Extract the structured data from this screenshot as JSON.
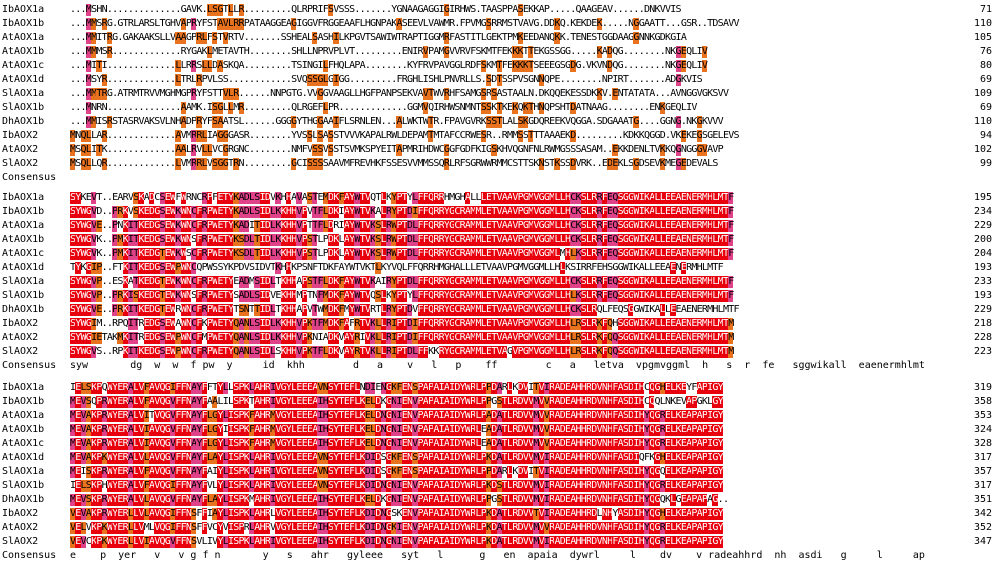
{
  "colors": {
    "identical": "#e8000c",
    "high_similarity": "#e0428a",
    "low_similarity": "#e8721e",
    "background": "#ffffff"
  },
  "blocks": [
    {
      "rows": [
        {
          "name": "IbAOX1a",
          "seq": "...MSHN..............GAVK.LSGTLLR.........QLRPRIFSVSSS.......YGNAAGAGGIGIRHWS.TAASPPASEKKAP.....QAAGEAV......DNKVVIS",
          "end": "71"
        },
        {
          "name": "IbAOX1b",
          "seq": "...MMSRG.GTRLARSLTGHVAPRYFSTAVLRRPATAAGGEAGIGGVFRGGEAAFLHGNPAKASEEVLVAWMR.FPVMGSRRMSTVAVG.DDKQ.KEKDEK.....NGGAATT...GSR..TDSAVV",
          "end": "110"
        },
        {
          "name": "AtAOX1a",
          "seq": "...MMITRG.GAKAAKSLLVAAGPRLFSTVRTV.......SSHEALSASHILKPGVTSAWIWTRAPTIGGMRFASTITLGEKTPMKEEDANQKK.TENESTGGDAAGGNNKGDKGIA",
          "end": "105"
        },
        {
          "name": "AtAOX1b",
          "seq": "...MMMSR.............RYGAKLMETAVTH........SHLLNPRVPLVT.........ENIRVPAMGVVRVFSKMTFEKKKTTEKGSSGG.....KADQG........NKGEQLIV",
          "end": "76"
        },
        {
          "name": "AtAOX1c",
          "seq": "...MITI.............LLRRSLLDASKQA.........TSINGILFHQLAPA........KYFRVPAVGGLRDFSKMTFEKKKTSEEEGSGDG.VKVNDQG........NKGEQLIV",
          "end": "80"
        },
        {
          "name": "AtAOX1d",
          "seq": "...MSYR.............LTRLRPVLSS............SVQSSGLGIGG.........FRGHLISHLPNVRLLS.SDTSSPVSGNNQPE........NPIRT.......ADGKVIS",
          "end": "69"
        },
        {
          "name": "SlAOX1a",
          "seq": "...MMTRG.ATRMTRVVMGHMGPRYFSTTVLR......NNPGTG.VVGGVAAGLLHGFPANPSEKVAVTWVRHFSAMGSRSASTAALN.DKQQEKESSDKKV.ENTATATA...AVNGGVGKSVV",
          "end": "109"
        },
        {
          "name": "SlAOX1b",
          "seq": "...MNRN..............AAMK.ISGLLMR.........QLRGEFLPR.............GGMVQIRHWSNMNTSSKTKEKQKTHNQPSHTDATNAAG........ENKGEQLIV",
          "end": "69"
        },
        {
          "name": "DhAOX1b",
          "seq": "...MMISRSTASRVAKSVLNHADPRYFSAATSL......GGGGYTHGGAAIFLSRNLEN...ALWKTWTR.FPAVGVRKSSTLALSKGDQREEKVQGGA.SDGAAATG....GGNG.NKGKVVV",
          "end": "110"
        },
        {
          "name": "IbAOX2",
          "seq": "MNQLLAR.............AVMRRLIAGGGASR........YVSSLSASSTVVVKAPALRWLDEPAMTMTAFCCRWESR..RMMSSTTTAAAEKD.........KDKKQGGD.VKEKEGSGELEVS",
          "end": "94"
        },
        {
          "name": "AtAOX2",
          "seq": "MSQLITK.............AALRVLLVCGRGNC........NMFVSSVSSTSVMKSPYEITAPMRIHDWCGGFGDFKIGSKHVQGNFNLRWMGSSSASAM..EKKDENLTVKKQGNGGGVAVP",
          "end": "102"
        },
        {
          "name": "SlAOX2",
          "seq": "MSQLLQR.............LVMRRLVSGGTRN.........GCISSSSAAVMFREVHKFSSESVVMMSSQRLRFSGRWWRMMCSTTSKNSTKSSDVRK..EDEKLSGDSEVKMEGEDEVALS",
          "end": "99"
        }
      ],
      "consensus": ""
    },
    {
      "rows": [
        {
          "name": "IbAOX1a",
          "seq": "SYKEVT..EARVSKADCSEWFWRNCRPFETYKADLSIDVKHHAVASTEMDKFAYWTVQTLKYPTYLFFQRRHMGHALLLETVAAVPGMVGGMLLHCKSLRRFEQSGGWIKALLEEAENERMHLMTF",
          "end": "195"
        },
        {
          "name": "IbAOX1b",
          "seq": "SYWGVD..PRKVSKEDGSEWKWNCFRPWETYKADLSIDLKKHHVPVTFLDKIAYWTVKALRYPTDIFFQRRYGCRAMMLETVAAVPGMVGGMLLHCKSLRRFEQSGGWIKALLEEAENERMHLMTF",
          "end": "234"
        },
        {
          "name": "AtAOX1a",
          "seq": "SYWGVE..PNKITKEDGSEWKWNCFRPWETYKADITIDLKKHHVPTTFLDRIAYWTVKSLRWPTDLFFQRRYGCRAMMLETVAAVPGMVGGMLLHCKSLRRFEQSGGWIKALLEEAENERMHLMTF",
          "end": "229"
        },
        {
          "name": "AtAOX1b",
          "seq": "SYWGVK..PMKITKEDGSEWKWNSFRPWETYKSDLTIDLKKHHVPSTLPDKLAYWTVKSLRWPTDLFFQRRYGCRAMMLETVAAVPGMVGGMLLHCKSLRRFEQSGGWIKALLEEAENERMHLMTF",
          "end": "200"
        },
        {
          "name": "AtAOX1c",
          "seq": "SYWGVK..PMKITKEDGTEWKWSCFRPWETYKSDLTIDLKKHHVPSTLPDKLAYWTVKSLRWPTDLFFQRRYGCRAMMLETVAAVPGMVGGMLMHLKSLRRFEQSGGWIKALLEEAENERMHLMTF",
          "end": "204"
        },
        {
          "name": "AtAOX1d",
          "seq": "TYKGIP..FTKITKEDGSEWPWNCQPWSSYKPDVSIDVTKHHKPSNFTDKFAYWTVKTLKYVQLFFQRRHMGHALLLETVAAVPGMVGGMLLHLKSIRRFEHSGGWIKALLEEAENERMHLMTF",
          "end": "193"
        },
        {
          "name": "SlAOX1a",
          "seq": "SYWGVP..ESKATKEDGTEWKWNCFRPWETYEADMSIDLTKHHAPSTFLDKFAYWTVKAIRYPTDLFFQRRYGCRAMMLETVAAVPGMVGGMLLHCKSLRRFEQSGGWIKALLEEAENERMHLMTF",
          "end": "233"
        },
        {
          "name": "SlAOX1b",
          "seq": "SYWGVP..PRKISKEDGTEWKWNSFRPWETYSADLSIDVEKHHMPTNFMDKFAYWTVQSLKYPTYLFFQRRYGCRAMMLETVAAVPGMVGGMLLHLKSLRRFEQSGGWIKALLEEAENERMHLMTF",
          "end": "193"
        },
        {
          "name": "DhAOX1b",
          "seq": "SYWGVE..PRKITKEDGTEWRWNCFRPWETYTSNTTIDLTKHHAPVTWMDKFMYWTVRTLRYPTDVFFQRRYGCRAMMLETVAAVPGMVGGMLLHCKSLRQLFEQSGGWIKALLEEAENERMHLMTF",
          "end": "229"
        },
        {
          "name": "IbAOX2",
          "seq": "SYWGIM..RPQITREDGSEWAWNCFKPWETYQANLSIDLKKHHVPKTFMDKFAFRTVKLLRIPTDIFFQRRYGCRAMMLETVAAVPGMVGGMLLHLRSLRKFQHSGGWIKALLEEAENERMHLMTM",
          "end": "218"
        },
        {
          "name": "AtAOX2",
          "seq": "SYWGIETAKMKITREDGSEWPWNCFMPWETYQANLSIDLKKHHVPKNIADKVAYRIVKLLRIPTDIFFQRRYGCRAMMLETVAAVPGMVGGMLLHLRSLRKFQQSGGWIKALLEEAENERMHLMTM",
          "end": "228"
        },
        {
          "name": "SlAOX2",
          "seq": "SYWGVS..RPKITKEDGSEWPWNCFRPWETYQANLSIDLSKHHVPKTFLDKVAYRTVKLLRIPTDLFFKKRYGCRAMMLETVAGVPGMVGGMLLHLRSLRKFQQSGGWIKALLEEAENERMHLMTM",
          "end": "223"
        }
      ],
      "consensus": "syw       dg  w  w  f pw  y     id  khh        d   a    v   l   p    ff        c   a   letva  vpgmvggml  h   s  r  fe   sggwikall  eaenermhlmt"
    },
    {
      "rows": [
        {
          "name": "IbAOX1a",
          "seq": "IELSKPQWYERALVFAVQGIFFNAYFFTYLLSPKLAHRIVGYLEEEAVNSYTEFLNDIENGKFENSPAPAIAIDYWRLPPDARLKDVITVIRADEAHHRDVNHFASDIHCQGHELKEYFAPIGY",
          "end": "319"
        },
        {
          "name": "IbAOX1b",
          "seq": "MEVSQPRWYERALVFAVQGVFFNAYFAALILSPKTAHRIVGYLEEEAIHSYTEFLKELDKGNIENVPAPAIAIDYWRLPPGSTLRDVVMVVRADEAHHRDVNHFASDIHCQQLNKEVAPGKLGY",
          "end": "358"
        },
        {
          "name": "AtAOX1a",
          "seq": "MEVAKPRWYERALVITVQGVFFNAYFLGYLISPKFAHRMVGYLEEEAIHSYTEFLKELDNGNIENVPAPAIAIDYWRLPADATLRDVVMVVRADEAHHRDVNHFASDIHYQGRELKEAPAPIGY",
          "end": "353"
        },
        {
          "name": "AtAOX1b",
          "seq": "MEVAKPRWYERALVIAVQGVFFNAYFLGYIISPKFAHRMVGYLEEEAIHSYTEFLKELDNGNIENVPAPAIAIDYWRLEADATLRDVVMVVRADEAHHRDVNHFASDIHYQGRELKEAPAPIGY",
          "end": "324"
        },
        {
          "name": "AtAOX1c",
          "seq": "MEVAKPRWYERALVIAVQGVFFNAYFLGYLISPKFAHRMVGYLEEEAIHSYTEFLKELDNGNIENVPAPAIAIDYWRLEADATLRDVVMVVRADEAHHRDVNHFASDIHYQGRELKEAPAPIGY",
          "end": "328"
        },
        {
          "name": "AtAOX1d",
          "seq": "MEVAKPKWYERALVLAVQGVFFNAYFLAYLISPKLAHRIVGYLEEEAVNSYTEFLKDIDSGKFENSPAPAIAIDYWRLPKDATLRDVVMVIRADEAHHRDVNHFASDIQFKGHELKEAPAPIGY",
          "end": "317"
        },
        {
          "name": "SlAOX1a",
          "seq": "MEISKPRWYERALVFAVQGVFFNAYFAIYLISPKLAHRIVGYLEEEAVNSYTEFLKDIDSGKFENSPAPAIAIDYWRLPPDARLKDVITVIRADEAHHRDVNHFASDIHYQGQELKEAPAPIGY",
          "end": "357"
        },
        {
          "name": "SlAOX1b",
          "seq": "IELSKPHWYERALVFAVQGIFFNAYFVLYLISPKLAHRIVGYLEEEAVNSYTEFLKDIDNGNIENVPAPAIAIDYWRLPKDSTLRDVVMVIRADEAHHRDVNHFASDIHYQGRELKEAPAPIGY",
          "end": "317"
        },
        {
          "name": "DhAOX1b",
          "seq": "MEVSKPRWYERALVLAVQGVFFNAYFLAYLISPKMAHRIVGYLEEEAIHSYTEFLKELDKGNIENVPAPAIAIDYWRLPPGSTLRDVVMVIRADEAHHRDVNHFASDIHYQGQKLGEAPAPAG..",
          "end": "351"
        },
        {
          "name": "IbAOX2",
          "seq": "VEVAKPRWYERLLVLAVQGIFFNSFFIAYLISPKLAHRLVGYLEEEAIHSYTEFLKDIDNGSKENVPAPAIAIDYWRLPKDATLRDVVTVIRADEAHHRDLNHYASDIHYQGHELKEAPAPIGY",
          "end": "342"
        },
        {
          "name": "AtAOX2",
          "seq": "VELVKPKWYERLLVMLVQGIFFNSFFVCYVISPRLAHRVVGYLEEEAIHSYTEFLKDIDNGKIENVPAPAIAIDYWRLPKDATLRDVVMVVRADEAHHRDVNHFASDIHYQGRELKEAPAPIGY",
          "end": "352"
        },
        {
          "name": "SlAOX2",
          "seq": "VEVCKPKWYERLLVIAVQGVFFNSVLIVYLISPKLAHRIVGYLEEEAIHSYTEFLKDIDNGNIENVPAPAIAIDYWRLPKDATLRDVVMVIRADEAHHRDVNHFASDIHYQGRELKEAPAPIGY",
          "end": "347"
        }
      ],
      "consensus": "e    p  yer   v   v g f n       y   s   ahr   gyleee   syt   l      g   en  apaia  dywrl     l    dv    v radeahhrd  nh  asdi   g     l     ap"
    }
  ],
  "labels": {
    "consensus": "Consensus"
  }
}
